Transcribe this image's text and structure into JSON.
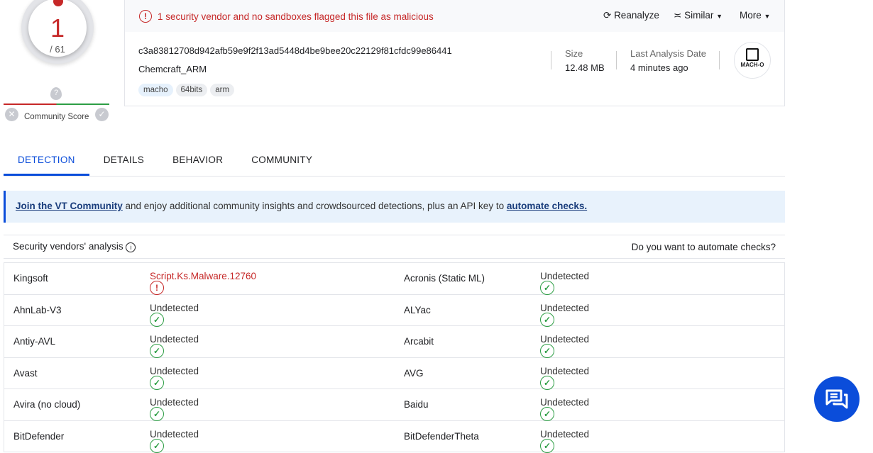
{
  "score": {
    "detections": "1",
    "total": "/ 61",
    "community_label": "Community Score"
  },
  "alert": "1 security vendor and no sandboxes flagged this file as malicious",
  "actions": {
    "reanalyze": "Reanalyze",
    "similar": "Similar",
    "more": "More"
  },
  "file": {
    "hash": "c3a83812708d942afb59e9f2f13ad5448d4be9bee20c22129f81cfdc99e86441",
    "name": "Chemcraft_ARM",
    "tags": [
      "macho",
      "64bits",
      "arm"
    ],
    "size_label": "Size",
    "size": "12.48 MB",
    "date_label": "Last Analysis Date",
    "date": "4 minutes ago",
    "type_icon_text": "MACH-O"
  },
  "tabs": [
    "DETECTION",
    "DETAILS",
    "BEHAVIOR",
    "COMMUNITY"
  ],
  "promo": {
    "link1": "Join the VT Community",
    "middle": " and enjoy additional community insights and crowdsourced detections, plus an API key to ",
    "link2": "automate checks."
  },
  "analysis": {
    "title": "Security vendors' analysis",
    "right": "Do you want to automate checks?"
  },
  "rows": [
    [
      {
        "v": "Kingsoft",
        "r": "Script.Ks.Malware.12760",
        "bad": true
      },
      {
        "v": "Acronis (Static ML)",
        "r": "Undetected"
      }
    ],
    [
      {
        "v": "AhnLab-V3",
        "r": "Undetected"
      },
      {
        "v": "ALYac",
        "r": "Undetected"
      }
    ],
    [
      {
        "v": "Antiy-AVL",
        "r": "Undetected"
      },
      {
        "v": "Arcabit",
        "r": "Undetected"
      }
    ],
    [
      {
        "v": "Avast",
        "r": "Undetected"
      },
      {
        "v": "AVG",
        "r": "Undetected"
      }
    ],
    [
      {
        "v": "Avira (no cloud)",
        "r": "Undetected"
      },
      {
        "v": "Baidu",
        "r": "Undetected"
      }
    ],
    [
      {
        "v": "BitDefender",
        "r": "Undetected"
      },
      {
        "v": "BitDefenderTheta",
        "r": "Undetected"
      }
    ]
  ],
  "colors": {
    "malicious": "#c62828",
    "clean": "#2e9e45",
    "accent": "#0b4dda"
  }
}
